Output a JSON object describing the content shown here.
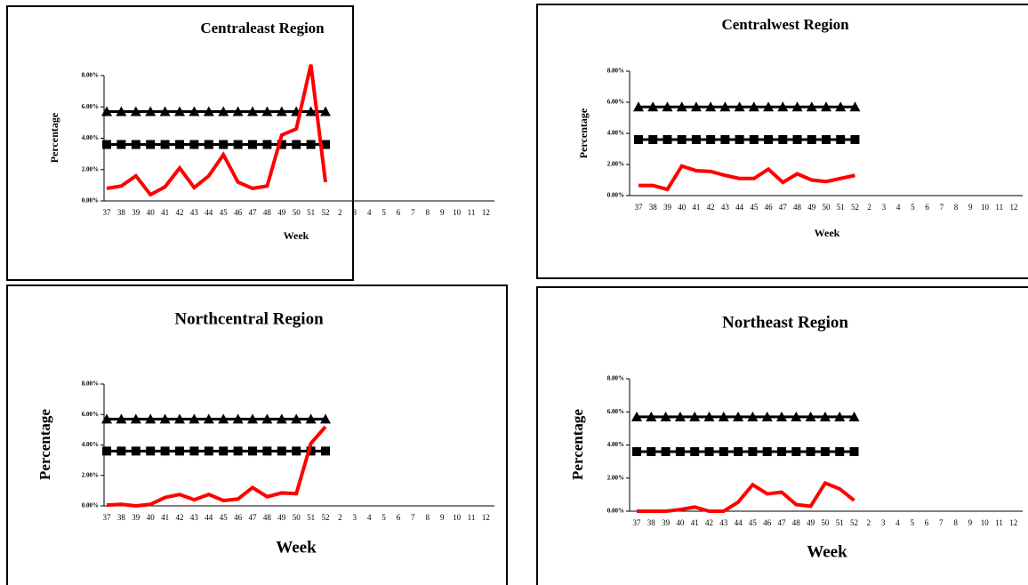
{
  "chart_data": [
    {
      "type": "line",
      "title": "Centraleast Region",
      "x_label": "Week",
      "y_label": "Percentage",
      "categories": [
        37,
        38,
        39,
        40,
        41,
        42,
        43,
        44,
        45,
        46,
        47,
        48,
        49,
        50,
        51,
        52,
        2,
        3,
        4,
        5,
        6,
        7,
        8,
        9,
        10,
        11,
        12
      ],
      "series": [
        {
          "color": "#000000",
          "marker": "triangle",
          "values": [
            5.7,
            5.7,
            5.7,
            5.7,
            5.7,
            5.7,
            5.7,
            5.7,
            5.7,
            5.7,
            5.7,
            5.7,
            5.7,
            5.7,
            5.7,
            5.7,
            null,
            null,
            null,
            null,
            null,
            null,
            null,
            null,
            null,
            null,
            null
          ]
        },
        {
          "color": "#000000",
          "marker": "square",
          "values": [
            3.6,
            3.6,
            3.6,
            3.6,
            3.6,
            3.6,
            3.6,
            3.6,
            3.6,
            3.6,
            3.6,
            3.6,
            3.6,
            3.6,
            3.6,
            3.6,
            null,
            null,
            null,
            null,
            null,
            null,
            null,
            null,
            null,
            null,
            null
          ]
        },
        {
          "color": "#ff0000",
          "values": [
            0.8,
            0.95,
            1.6,
            0.4,
            0.9,
            2.1,
            0.85,
            1.6,
            2.95,
            1.2,
            0.8,
            0.95,
            4.2,
            4.6,
            8.7,
            1.2,
            null,
            null,
            null,
            null,
            null,
            null,
            null,
            null,
            null,
            null,
            null
          ]
        }
      ],
      "ylim": [
        0,
        8
      ],
      "yticks": [
        {
          "value": 0,
          "label": "0.00%"
        },
        {
          "value": 2,
          "label": "2.00%"
        },
        {
          "value": 4,
          "label": "4.00%"
        },
        {
          "value": 6,
          "label": "6.00%"
        },
        {
          "value": 8,
          "label": "8.00%"
        }
      ]
    },
    {
      "type": "line",
      "title": "Centralwest Region",
      "x_label": "Week",
      "y_label": "Percentage",
      "categories": [
        37,
        38,
        39,
        40,
        41,
        42,
        43,
        44,
        45,
        46,
        47,
        48,
        49,
        50,
        51,
        52,
        2,
        3,
        4,
        5,
        6,
        7,
        8,
        9,
        10,
        11,
        12
      ],
      "series": [
        {
          "color": "#000000",
          "marker": "triangle",
          "values": [
            5.7,
            5.7,
            5.7,
            5.7,
            5.7,
            5.7,
            5.7,
            5.7,
            5.7,
            5.7,
            5.7,
            5.7,
            5.7,
            5.7,
            5.7,
            5.7,
            null,
            null,
            null,
            null,
            null,
            null,
            null,
            null,
            null,
            null,
            null
          ]
        },
        {
          "color": "#000000",
          "marker": "square",
          "values": [
            3.6,
            3.6,
            3.6,
            3.6,
            3.6,
            3.6,
            3.6,
            3.6,
            3.6,
            3.6,
            3.6,
            3.6,
            3.6,
            3.6,
            3.6,
            3.6,
            null,
            null,
            null,
            null,
            null,
            null,
            null,
            null,
            null,
            null,
            null
          ]
        },
        {
          "color": "#ff0000",
          "values": [
            0.65,
            0.65,
            0.4,
            1.9,
            1.6,
            1.55,
            1.3,
            1.1,
            1.1,
            1.7,
            0.85,
            1.4,
            1.0,
            0.9,
            1.1,
            1.3,
            null,
            null,
            null,
            null,
            null,
            null,
            null,
            null,
            null,
            null,
            null
          ]
        }
      ],
      "ylim": [
        0,
        8
      ],
      "yticks": [
        {
          "value": 0,
          "label": "0.00%"
        },
        {
          "value": 2,
          "label": "2.00%"
        },
        {
          "value": 4,
          "label": "4.00%"
        },
        {
          "value": 6,
          "label": "6.00%"
        },
        {
          "value": 8,
          "label": "8.00%"
        }
      ]
    },
    {
      "type": "line",
      "title": "Northcentral  Region",
      "x_label": "Week",
      "y_label": "Percentage",
      "categories": [
        37,
        38,
        39,
        40,
        41,
        42,
        43,
        44,
        45,
        46,
        47,
        48,
        49,
        50,
        51,
        52,
        2,
        3,
        4,
        5,
        6,
        7,
        8,
        9,
        10,
        11,
        12
      ],
      "series": [
        {
          "color": "#000000",
          "marker": "triangle",
          "values": [
            5.7,
            5.7,
            5.7,
            5.7,
            5.7,
            5.7,
            5.7,
            5.7,
            5.7,
            5.7,
            5.7,
            5.7,
            5.7,
            5.7,
            5.7,
            5.7,
            null,
            null,
            null,
            null,
            null,
            null,
            null,
            null,
            null,
            null,
            null
          ]
        },
        {
          "color": "#000000",
          "marker": "square",
          "values": [
            3.6,
            3.6,
            3.6,
            3.6,
            3.6,
            3.6,
            3.6,
            3.6,
            3.6,
            3.6,
            3.6,
            3.6,
            3.6,
            3.6,
            3.6,
            3.6,
            null,
            null,
            null,
            null,
            null,
            null,
            null,
            null,
            null,
            null,
            null
          ]
        },
        {
          "color": "#ff0000",
          "values": [
            0.05,
            0.1,
            0,
            0.1,
            0.55,
            0.75,
            0.4,
            0.75,
            0.35,
            0.45,
            1.2,
            0.6,
            0.85,
            0.8,
            4.1,
            5.2,
            null,
            null,
            null,
            null,
            null,
            null,
            null,
            null,
            null,
            null,
            null
          ]
        }
      ],
      "ylim": [
        0,
        8
      ],
      "yticks": [
        {
          "value": 0,
          "label": "0.00%"
        },
        {
          "value": 2,
          "label": "2.00%"
        },
        {
          "value": 4,
          "label": "4.00%"
        },
        {
          "value": 6,
          "label": "6.00%"
        },
        {
          "value": 8,
          "label": "8.00%"
        }
      ]
    },
    {
      "type": "line",
      "title": "Northeast Region",
      "x_label": "Week",
      "y_label": "Percentage",
      "categories": [
        37,
        38,
        39,
        40,
        41,
        42,
        43,
        44,
        45,
        46,
        47,
        48,
        49,
        50,
        51,
        52,
        2,
        3,
        4,
        5,
        6,
        7,
        8,
        9,
        10,
        11,
        12
      ],
      "series": [
        {
          "color": "#000000",
          "marker": "triangle",
          "values": [
            5.7,
            5.7,
            5.7,
            5.7,
            5.7,
            5.7,
            5.7,
            5.7,
            5.7,
            5.7,
            5.7,
            5.7,
            5.7,
            5.7,
            5.7,
            5.7,
            null,
            null,
            null,
            null,
            null,
            null,
            null,
            null,
            null,
            null,
            null
          ]
        },
        {
          "color": "#000000",
          "marker": "square",
          "values": [
            3.6,
            3.6,
            3.6,
            3.6,
            3.6,
            3.6,
            3.6,
            3.6,
            3.6,
            3.6,
            3.6,
            3.6,
            3.6,
            3.6,
            3.6,
            3.6,
            null,
            null,
            null,
            null,
            null,
            null,
            null,
            null,
            null,
            null,
            null
          ]
        },
        {
          "color": "#ff0000",
          "values": [
            0,
            0,
            0,
            0.1,
            0.25,
            0,
            0,
            0.55,
            1.6,
            1.05,
            1.15,
            0.4,
            0.3,
            1.7,
            1.35,
            0.65,
            null,
            null,
            null,
            null,
            null,
            null,
            null,
            null,
            null,
            null,
            null
          ]
        }
      ],
      "ylim": [
        0,
        8
      ],
      "yticks": [
        {
          "value": 0,
          "label": "0.00%"
        },
        {
          "value": 2,
          "label": "2.00%"
        },
        {
          "value": 4,
          "label": "4.00%"
        },
        {
          "value": 6,
          "label": "6.00%"
        },
        {
          "value": 8,
          "label": "8.00%"
        }
      ]
    }
  ]
}
